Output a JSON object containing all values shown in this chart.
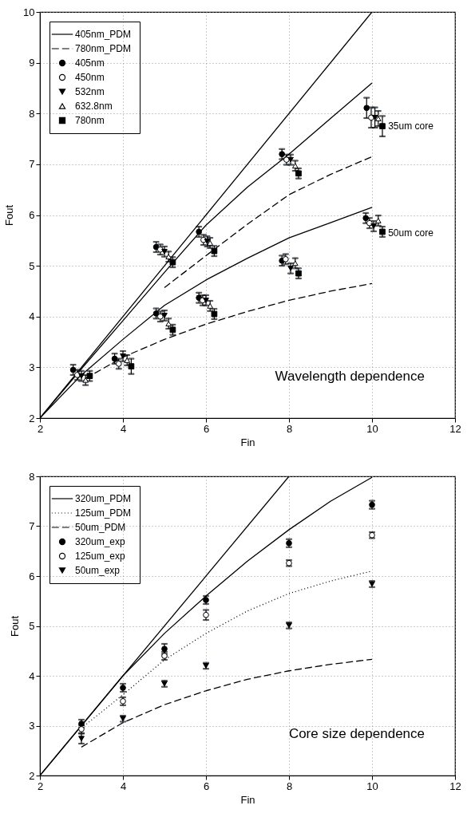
{
  "chart_data": [
    {
      "type": "scatter",
      "xlabel": "Fin",
      "ylabel": "Fout",
      "xlim": [
        2,
        12
      ],
      "ylim": [
        2,
        10
      ],
      "xticks": [
        2,
        4,
        6,
        8,
        10,
        12
      ],
      "yticks": [
        2,
        3,
        4,
        5,
        6,
        7,
        8,
        9,
        10
      ],
      "grid": true,
      "legend": "top left",
      "annotations": [
        "Wavelength dependence",
        {
          "text": "35um core",
          "x": 10.35,
          "y": 7.75
        },
        {
          "text": "50um core",
          "x": 10.35,
          "y": 5.65
        }
      ],
      "series": [
        {
          "type": "line",
          "color": "#000000",
          "line_style": "solid",
          "x": [
            2,
            10
          ],
          "values": [
            2,
            10
          ]
        },
        {
          "name": "405nm_PDM",
          "type": "line",
          "color": "#000000",
          "line_style": "solid",
          "x": [
            2,
            3,
            4,
            5,
            6,
            7,
            8,
            9,
            10
          ],
          "values": [
            2,
            2.97,
            3.92,
            4.87,
            5.8,
            6.55,
            7.2,
            7.9,
            8.6
          ]
        },
        {
          "type": "line",
          "color": "#000000",
          "line_style": "solid",
          "x": [
            2,
            3,
            4,
            5,
            6,
            7,
            8,
            9,
            10
          ],
          "values": [
            2,
            2.85,
            3.55,
            4.22,
            4.72,
            5.15,
            5.55,
            5.85,
            6.15
          ]
        },
        {
          "name": "780nm_PDM",
          "type": "line",
          "color": "#000000",
          "line_style": "dashed",
          "x": [
            5,
            6,
            7,
            8,
            9,
            10
          ],
          "values": [
            4.57,
            5.2,
            5.82,
            6.4,
            6.8,
            7.15
          ]
        },
        {
          "type": "line",
          "color": "#000000",
          "line_style": "dashed",
          "x": [
            3.1,
            4,
            5,
            6,
            7,
            8,
            9,
            10
          ],
          "values": [
            2.78,
            3.2,
            3.55,
            3.85,
            4.1,
            4.32,
            4.5,
            4.65
          ]
        },
        {
          "name": "405nm",
          "type": "scatter",
          "color": "#000000",
          "marker": "circle",
          "x": [
            2.8,
            3.8,
            4.8,
            4.8,
            5.83,
            5.83,
            7.83,
            7.83,
            9.87,
            9.85
          ],
          "values": [
            2.95,
            3.17,
            5.37,
            4.06,
            5.67,
            4.37,
            7.2,
            5.1,
            8.11,
            5.94
          ],
          "errors": [
            0.1,
            0.1,
            0.1,
            0.1,
            0.1,
            0.1,
            0.1,
            0.1,
            0.2,
            0.1
          ]
        },
        {
          "name": "450nm",
          "type": "scatter",
          "color": "#000000",
          "marker": "circle-open",
          "x": [
            2.9,
            3.9,
            4.9,
            4.9,
            5.94,
            5.92,
            7.94,
            7.92,
            9.98,
            9.94
          ],
          "values": [
            2.85,
            3.07,
            5.32,
            4.0,
            5.51,
            4.32,
            7.09,
            5.13,
            7.92,
            5.84
          ],
          "errors": [
            0.1,
            0.1,
            0.1,
            0.1,
            0.1,
            0.1,
            0.1,
            0.1,
            0.2,
            0.1
          ]
        },
        {
          "name": "532nm",
          "type": "scatter",
          "color": "#000000",
          "marker": "triangle-down",
          "x": [
            3.0,
            4.0,
            5.0,
            5.0,
            6.03,
            6.0,
            8.04,
            8.04,
            10.07,
            10.04
          ],
          "values": [
            2.83,
            3.22,
            5.28,
            4.02,
            5.48,
            4.32,
            7.09,
            4.95,
            7.92,
            5.78
          ],
          "errors": [
            0.1,
            0.1,
            0.1,
            0.1,
            0.1,
            0.1,
            0.1,
            0.1,
            0.2,
            0.1
          ]
        },
        {
          "name": "632.8nm",
          "type": "scatter",
          "color": "#000000",
          "marker": "triangle-open",
          "x": [
            3.1,
            4.1,
            5.1,
            5.1,
            6.1,
            6.1,
            8.15,
            8.15,
            10.15,
            10.15
          ],
          "values": [
            2.75,
            3.14,
            5.18,
            3.86,
            5.45,
            4.21,
            6.97,
            5.05,
            7.9,
            5.89
          ],
          "errors": [
            0.1,
            0.1,
            0.1,
            0.1,
            0.1,
            0.1,
            0.1,
            0.1,
            0.15,
            0.1
          ]
        },
        {
          "name": "780nm",
          "type": "scatter",
          "color": "#000000",
          "marker": "square",
          "x": [
            3.2,
            4.2,
            5.2,
            5.2,
            6.2,
            6.2,
            8.23,
            8.23,
            10.25,
            10.25
          ],
          "values": [
            2.83,
            3.02,
            5.07,
            3.74,
            5.29,
            4.05,
            6.82,
            4.85,
            7.75,
            5.67
          ],
          "errors": [
            0.1,
            0.15,
            0.1,
            0.1,
            0.1,
            0.1,
            0.1,
            0.1,
            0.2,
            0.1
          ]
        }
      ]
    },
    {
      "type": "scatter",
      "xlabel": "Fin",
      "ylabel": "Fout",
      "xlim": [
        2,
        12
      ],
      "ylim": [
        2,
        8
      ],
      "xticks": [
        2,
        4,
        6,
        8,
        10,
        12
      ],
      "yticks": [
        2,
        3,
        4,
        5,
        6,
        7,
        8
      ],
      "grid": true,
      "legend": "top left",
      "annotations": [
        "Core size dependence"
      ],
      "series": [
        {
          "type": "line",
          "color": "#000000",
          "line_style": "solid",
          "x": [
            2,
            8
          ],
          "values": [
            2,
            8
          ]
        },
        {
          "name": "320um_PDM",
          "type": "line",
          "color": "#000000",
          "line_style": "solid",
          "x": [
            2,
            3,
            4,
            5,
            6,
            7,
            8,
            9,
            10
          ],
          "values": [
            2,
            3,
            4,
            4.85,
            5.6,
            6.3,
            6.93,
            7.5,
            7.98
          ]
        },
        {
          "name": "125um_PDM",
          "type": "line",
          "color": "#000000",
          "line_style": "dotted",
          "x": [
            3,
            4,
            5,
            6,
            7,
            8,
            9,
            10
          ],
          "values": [
            2.95,
            3.62,
            4.32,
            4.85,
            5.3,
            5.65,
            5.9,
            6.1
          ]
        },
        {
          "name": "50um_PDM",
          "type": "line",
          "color": "#000000",
          "line_style": "dashed",
          "x": [
            3,
            4,
            5,
            6,
            7,
            8,
            9,
            10
          ],
          "values": [
            2.57,
            3.06,
            3.42,
            3.7,
            3.93,
            4.1,
            4.23,
            4.33
          ]
        },
        {
          "name": "320um_exp",
          "type": "scatter",
          "color": "#000000",
          "marker": "circle",
          "x": [
            3,
            4,
            5,
            6,
            8,
            10
          ],
          "values": [
            3.04,
            3.76,
            4.54,
            5.52,
            6.66,
            7.43
          ],
          "errors": [
            0.08,
            0.08,
            0.1,
            0.08,
            0.08,
            0.08
          ]
        },
        {
          "name": "125um_exp",
          "type": "scatter",
          "color": "#000000",
          "marker": "circle-open",
          "x": [
            3,
            4,
            5,
            6,
            8,
            10
          ],
          "values": [
            2.93,
            3.49,
            4.4,
            5.22,
            6.26,
            6.82
          ],
          "errors": [
            0.08,
            0.08,
            0.08,
            0.1,
            0.06,
            0.06
          ]
        },
        {
          "name": "50um_exp",
          "type": "scatter",
          "color": "#000000",
          "marker": "triangle-down",
          "x": [
            3,
            4,
            5,
            6,
            8,
            10
          ],
          "values": [
            2.74,
            3.14,
            3.84,
            4.2,
            5.01,
            5.84
          ],
          "errors": [
            0.1,
            0.06,
            0.06,
            0.06,
            0.06,
            0.06
          ]
        }
      ]
    }
  ]
}
